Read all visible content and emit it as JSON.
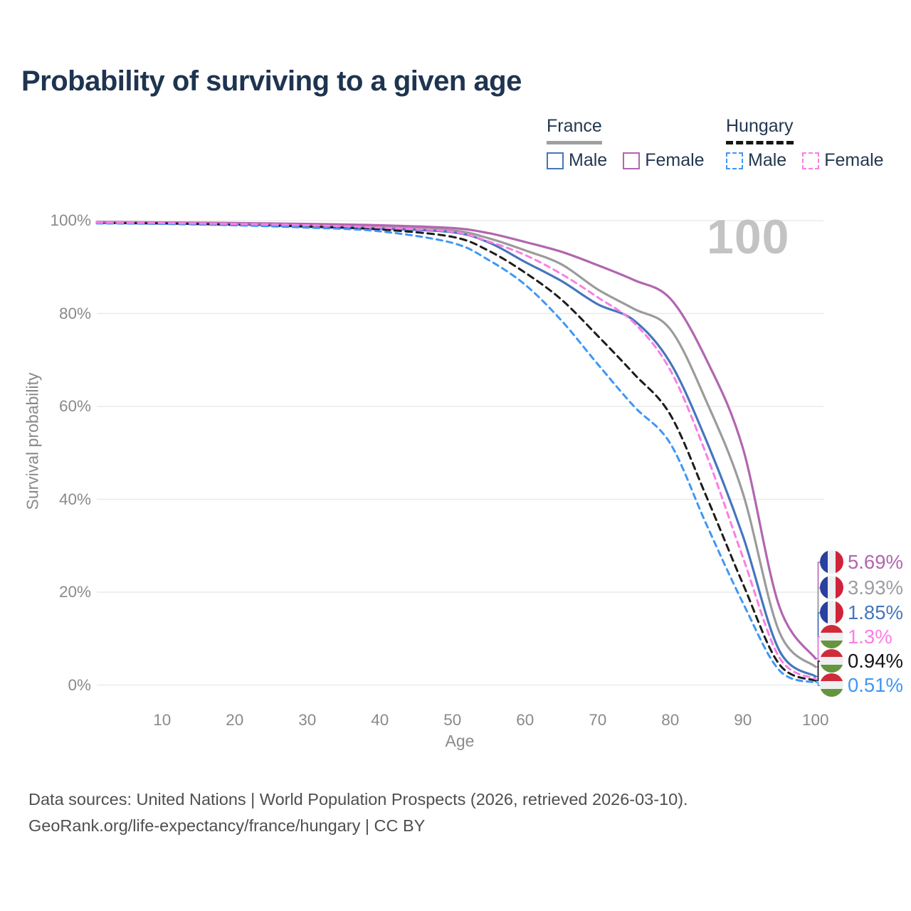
{
  "title": "Probability of surviving to a given age",
  "watermark_age": "100",
  "legend": {
    "groups": [
      {
        "label": "France",
        "line_style": "solid",
        "items": [
          {
            "label": "Male",
            "color": "#4576bd",
            "dashed": false
          },
          {
            "label": "Female",
            "color": "#b166af",
            "dashed": false
          }
        ]
      },
      {
        "label": "Hungary",
        "line_style": "dashed",
        "items": [
          {
            "label": "Male",
            "color": "#3f97f5",
            "dashed": true
          },
          {
            "label": "Female",
            "color": "#fb7ee4",
            "dashed": true
          }
        ]
      }
    ]
  },
  "y_axis": {
    "label": "Survival probability",
    "ticks": [
      "100%",
      "80%",
      "60%",
      "40%",
      "20%",
      "0%"
    ]
  },
  "x_axis": {
    "label": "Age",
    "ticks": [
      "10",
      "20",
      "30",
      "40",
      "50",
      "60",
      "70",
      "80",
      "90",
      "100"
    ]
  },
  "end_labels": [
    {
      "text": "5.69%",
      "color": "#b166af",
      "flag": "france"
    },
    {
      "text": "3.93%",
      "color": "#9b9ea2",
      "flag": "france"
    },
    {
      "text": "1.85%",
      "color": "#4576bd",
      "flag": "france"
    },
    {
      "text": "1.3%",
      "color": "#fb7ee4",
      "flag": "hungary"
    },
    {
      "text": "0.94%",
      "color": "#141518",
      "flag": "hungary"
    },
    {
      "text": "0.51%",
      "color": "#3f97f5",
      "flag": "hungary"
    }
  ],
  "footer": {
    "line1": "Data sources: United Nations | World Population Prospects (2026, retrieved 2026-03-10).",
    "line2": "GeoRank.org/life-expectancy/france/hungary | CC BY"
  },
  "chart_data": {
    "type": "line",
    "title": "Probability of surviving to a given age",
    "xlabel": "Age",
    "ylabel": "Survival probability",
    "xlim": [
      1,
      100
    ],
    "ylim": [
      0,
      100
    ],
    "grid": "horizontal",
    "legend_position": "top-right",
    "x": [
      1,
      10,
      20,
      30,
      40,
      50,
      55,
      60,
      65,
      70,
      75,
      80,
      85,
      90,
      95,
      100
    ],
    "series": [
      {
        "name": "France Female",
        "color": "#b166af",
        "dashed": false,
        "end_value_label": "5.69%",
        "values": [
          99.7,
          99.6,
          99.5,
          99.3,
          99.0,
          98.4,
          97.3,
          95.4,
          93.3,
          90.4,
          87.2,
          83.2,
          70.0,
          51.0,
          17.0,
          5.69
        ]
      },
      {
        "name": "France Both sexes",
        "color": "#9b9b9b",
        "dashed": false,
        "end_value_label": "3.93%",
        "values": [
          99.6,
          99.5,
          99.3,
          99.1,
          98.6,
          97.9,
          96.2,
          93.6,
          90.6,
          85.2,
          81.0,
          76.6,
          61.0,
          41.3,
          11.5,
          3.93
        ]
      },
      {
        "name": "France Male",
        "color": "#4576bd",
        "dashed": false,
        "end_value_label": "1.85%",
        "values": [
          99.5,
          99.4,
          99.2,
          98.8,
          98.3,
          97.5,
          95.3,
          91.1,
          87.0,
          82.0,
          78.5,
          69.4,
          52.5,
          32.1,
          7.5,
          1.85
        ]
      },
      {
        "name": "Hungary Female",
        "color": "#fb7ee4",
        "dashed": true,
        "end_value_label": "1.3%",
        "values": [
          99.6,
          99.5,
          99.3,
          99.0,
          98.5,
          97.6,
          95.5,
          92.6,
          88.5,
          83.5,
          78.0,
          67.8,
          49.5,
          27.5,
          6.0,
          1.3
        ]
      },
      {
        "name": "Hungary Both sexes",
        "color": "#1c1c1c",
        "dashed": true,
        "end_value_label": "0.94%",
        "values": [
          99.5,
          99.4,
          99.1,
          98.7,
          98.1,
          96.5,
          93.5,
          88.8,
          83.0,
          75.2,
          67.0,
          58.2,
          40.5,
          21.8,
          4.5,
          0.94
        ]
      },
      {
        "name": "Hungary Male",
        "color": "#3f97f5",
        "dashed": true,
        "end_value_label": "0.51%",
        "values": [
          99.4,
          99.3,
          99.0,
          98.5,
          97.7,
          95.2,
          91.5,
          86.2,
          78.5,
          69.1,
          60.0,
          52.0,
          34.5,
          17.7,
          3.2,
          0.51
        ]
      }
    ]
  }
}
